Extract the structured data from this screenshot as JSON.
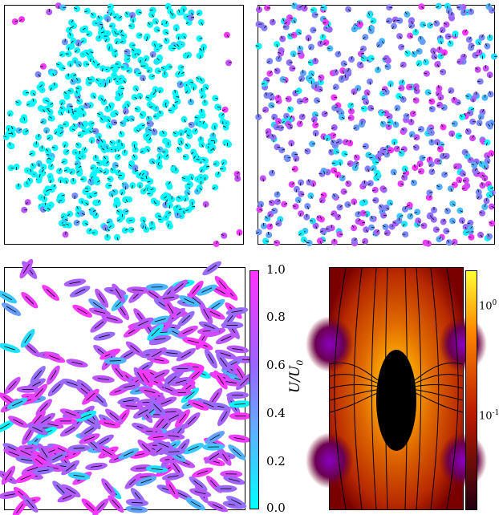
{
  "colorbar_left": {
    "label": "U/U",
    "label_sub": "0",
    "ticks": [
      "1.0",
      "0.8",
      "0.6",
      "0.4",
      "0.2",
      "0.0"
    ],
    "colors": [
      "#ff33ff",
      "#00ffff"
    ]
  },
  "colorbar_right": {
    "ticks": [
      "10",
      "10"
    ],
    "exponents": [
      "0",
      "-1"
    ],
    "colors": [
      "#ffff33",
      "#ff8800",
      "#bb1a00",
      "#220011"
    ]
  },
  "chart_data": [
    {
      "type": "scatter",
      "panel": "a",
      "description_values": "dense cyan cluster of circular particles",
      "xlim": [
        0,
        1
      ],
      "ylim": [
        0,
        1
      ]
    },
    {
      "type": "scatter",
      "panel": "b",
      "xlim": [
        0,
        1
      ],
      "ylim": [
        0,
        1
      ]
    },
    {
      "type": "scatter",
      "panel": "c",
      "xlim": [
        0,
        1
      ],
      "ylim": [
        0,
        1
      ]
    },
    {
      "type": "heatmap",
      "panel": "d",
      "scale": "log"
    }
  ]
}
